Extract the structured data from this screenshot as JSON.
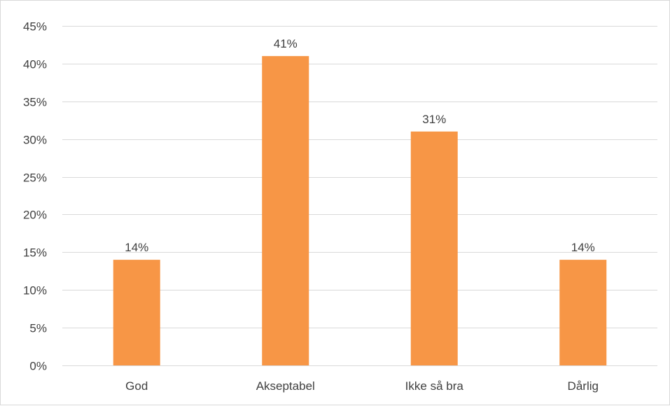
{
  "chart_data": {
    "type": "bar",
    "categories": [
      "God",
      "Akseptabel",
      "Ikke så bra",
      "Dårlig"
    ],
    "values": [
      14,
      41,
      31,
      14
    ],
    "data_labels": [
      "14%",
      "41%",
      "31%",
      "14%"
    ],
    "ylim": [
      0,
      45
    ],
    "y_ticks": [
      0,
      5,
      10,
      15,
      20,
      25,
      30,
      35,
      40,
      45
    ],
    "y_tick_labels": [
      "0%",
      "5%",
      "10%",
      "15%",
      "20%",
      "25%",
      "30%",
      "35%",
      "40%",
      "45%"
    ],
    "grid": true,
    "legend": "none",
    "bar_color": "#f79646",
    "title": "",
    "xlabel": "",
    "ylabel": ""
  }
}
